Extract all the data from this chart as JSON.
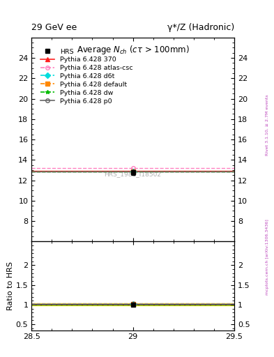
{
  "title_top_left": "29 GeV ee",
  "title_top_right": "γ*/Z (Hadronic)",
  "main_title": "Average $N_{ch}$ ($c\\tau$ > 100mm)",
  "ylabel_ratio": "Ratio to HRS",
  "watermark": "HRS_1986_I18502",
  "rivet_label": "Rivet 3.1.10, ≥ 2.7M events",
  "mcplots_label": "mcplots.cern.ch [arXiv:1306.3436]",
  "xlim": [
    28.5,
    29.5
  ],
  "ylim_main": [
    6,
    26
  ],
  "ylim_ratio": [
    0.35,
    2.6
  ],
  "yticks_main": [
    8,
    10,
    12,
    14,
    16,
    18,
    20,
    22,
    24
  ],
  "yticks_ratio_show": [
    0.5,
    1.0,
    1.5,
    2.0
  ],
  "xticks": [
    28.5,
    29.0,
    29.5
  ],
  "data_x": 29.0,
  "series": [
    {
      "label": "HRS",
      "color": "#000000",
      "marker": "s",
      "markersize": 5,
      "linestyle": "none",
      "y_main": 12.77,
      "yerr_main": 0.22,
      "y_ratio": 1.0,
      "yerr_ratio": 0.017
    },
    {
      "label": "Pythia 6.428 370",
      "color": "#ff2020",
      "linestyle": "-",
      "marker": "^",
      "markersize": 4,
      "y_main": 12.9,
      "y_ratio": 1.009
    },
    {
      "label": "Pythia 6.428 atlas-csc",
      "color": "#ff80c0",
      "linestyle": "--",
      "marker": "o",
      "markersize": 4,
      "y_main": 13.2,
      "y_ratio": 1.034
    },
    {
      "label": "Pythia 6.428 d6t",
      "color": "#00dddd",
      "linestyle": "--",
      "marker": "D",
      "markersize": 4,
      "y_main": 12.88,
      "y_ratio": 1.008
    },
    {
      "label": "Pythia 6.428 default",
      "color": "#ff8800",
      "linestyle": "--",
      "marker": "s",
      "markersize": 4,
      "y_main": 12.88,
      "y_ratio": 1.008
    },
    {
      "label": "Pythia 6.428 dw",
      "color": "#00bb00",
      "linestyle": "--",
      "marker": "*",
      "markersize": 5,
      "y_main": 12.88,
      "y_ratio": 1.008
    },
    {
      "label": "Pythia 6.428 p0",
      "color": "#666666",
      "linestyle": "-",
      "marker": "o",
      "markersize": 4,
      "y_main": 12.88,
      "y_ratio": 1.008
    }
  ],
  "ratio_band_color": "#ddff00",
  "ratio_band_alpha": 0.85,
  "ratio_band_lo": 0.975,
  "ratio_band_hi": 1.025,
  "background_color": "#ffffff"
}
